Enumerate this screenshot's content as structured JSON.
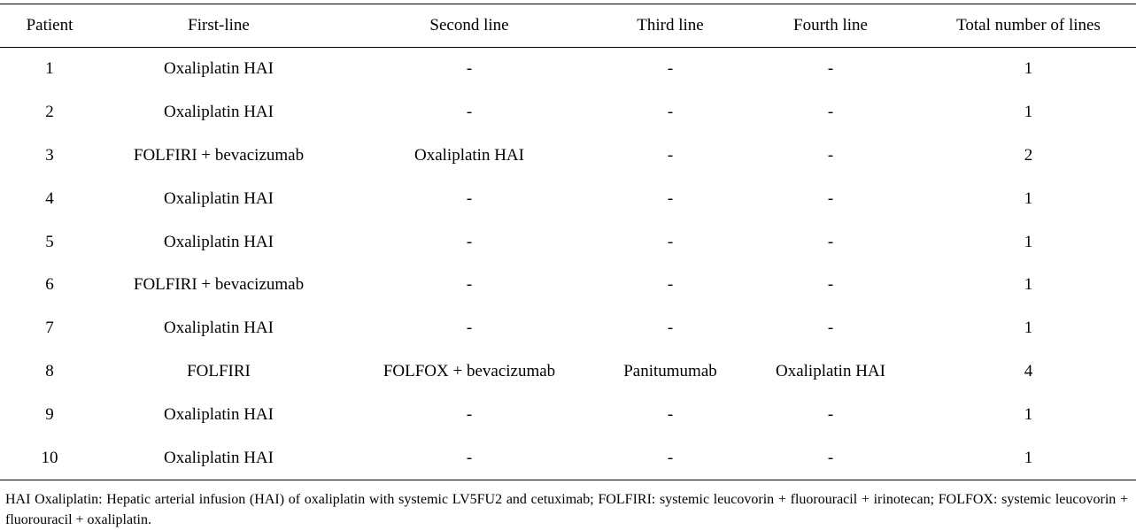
{
  "table": {
    "header": [
      "Patient",
      "First-line",
      "Second line",
      "Third line",
      "Fourth line",
      "Total number of lines"
    ],
    "rows": [
      [
        "1",
        "Oxaliplatin HAI",
        "-",
        "-",
        "-",
        "1"
      ],
      [
        "2",
        "Oxaliplatin HAI",
        "-",
        "-",
        "-",
        "1"
      ],
      [
        "3",
        "FOLFIRI + bevacizumab",
        "Oxaliplatin HAI",
        "-",
        "-",
        "2"
      ],
      [
        "4",
        "Oxaliplatin HAI",
        "-",
        "-",
        "-",
        "1"
      ],
      [
        "5",
        "Oxaliplatin HAI",
        "-",
        "-",
        "-",
        "1"
      ],
      [
        "6",
        "FOLFIRI + bevacizumab",
        "-",
        "-",
        "-",
        "1"
      ],
      [
        "7",
        "Oxaliplatin HAI",
        "-",
        "-",
        "-",
        "1"
      ],
      [
        "8",
        "FOLFIRI",
        "FOLFOX + bevacizumab",
        "Panitumumab",
        "Oxaliplatin HAI",
        "4"
      ],
      [
        "9",
        "Oxaliplatin HAI",
        "-",
        "-",
        "-",
        "1"
      ],
      [
        "10",
        "Oxaliplatin HAI",
        "-",
        "-",
        "-",
        "1"
      ]
    ],
    "footnote": "HAI Oxaliplatin: Hepatic arterial infusion (HAI) of oxaliplatin with systemic LV5FU2 and cetuximab; FOLFIRI: systemic leucovorin + fluorouracil + irinotecan; FOLFOX: systemic leucovorin + fluorouracil + oxaliplatin."
  }
}
